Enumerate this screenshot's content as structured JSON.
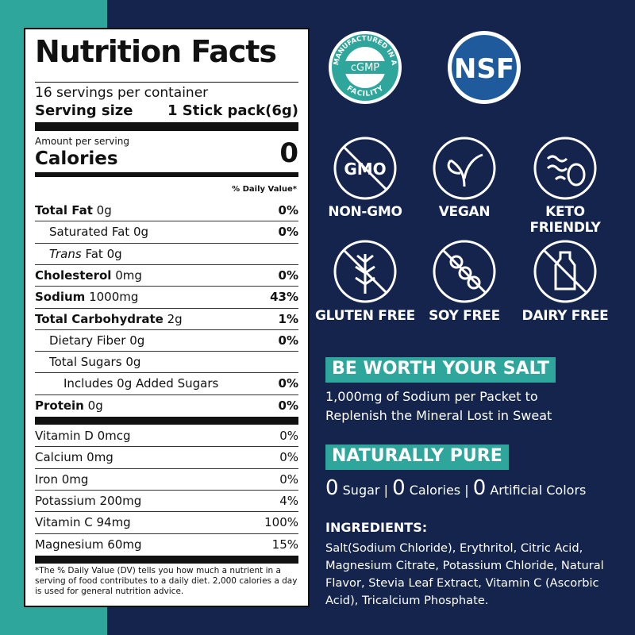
{
  "nutrition_facts": {
    "title": "Nutrition Facts",
    "servings": "16 servings per container",
    "serving_size_label": "Serving size",
    "serving_size_value": "1 Stick pack(6g)",
    "amount_per_serving": "Amount per serving",
    "calories_label": "Calories",
    "calories_value": "0",
    "daily_value_header": "% Daily Value*",
    "nutrients": [
      {
        "name": "Total Fat",
        "amount": "0g",
        "dv": "0%",
        "bold": true,
        "indent": 0
      },
      {
        "name": "Saturated Fat",
        "amount": "0g",
        "dv": "0%",
        "bold": false,
        "indent": 1
      },
      {
        "name_italic": "Trans",
        "name": "Fat",
        "amount": "0g",
        "bold": false,
        "indent": 1
      },
      {
        "name": "Cholesterol",
        "amount": "0mg",
        "dv": "0%",
        "bold": true,
        "indent": 0
      },
      {
        "name": "Sodium",
        "amount": "1000mg",
        "dv": "43%",
        "bold": true,
        "indent": 0
      },
      {
        "name": "Total Carbohydrate",
        "amount": "2g",
        "dv": "1%",
        "bold": true,
        "indent": 0
      },
      {
        "name": "Dietary Fiber",
        "amount": "0g",
        "dv": "0%",
        "bold": false,
        "indent": 1
      },
      {
        "name": "Total Sugars",
        "amount": "0g",
        "bold": false,
        "indent": 1
      },
      {
        "name": "Includes 0g Added Sugars",
        "dv": "0%",
        "bold": false,
        "indent": 2
      },
      {
        "name": "Protein",
        "amount": "0g",
        "dv": "0%",
        "bold": true,
        "indent": 0
      }
    ],
    "vitamins": [
      {
        "name": "Vitamin D",
        "amount": "0mcg",
        "dv": "0%"
      },
      {
        "name": "Calcium",
        "amount": "0mg",
        "dv": "0%"
      },
      {
        "name": "Iron",
        "amount": "0mg",
        "dv": "0%"
      },
      {
        "name": "Potassium",
        "amount": "200mg",
        "dv": "4%"
      },
      {
        "name": "Vitamin C",
        "amount": "94mg",
        "dv": "100%"
      },
      {
        "name": "Magnesium",
        "amount": "60mg",
        "dv": "15%"
      }
    ],
    "footnote": "*The % Daily Value (DV) tells you how much a nutrient in a serving of food contributes to a daily diet. 2,000 calories a day is used for general nutrition advice."
  },
  "badges": {
    "cgmp": {
      "top": "MANUFACTURED IN A",
      "center": "cGMP",
      "bottom": "FACILITY"
    },
    "nsf": "NSF"
  },
  "features": [
    {
      "icon_text": "GMO",
      "label": "NON-GMO"
    },
    {
      "label": "VEGAN"
    },
    {
      "label": "KETO FRIENDLY"
    },
    {
      "label": "GLUTEN FREE"
    },
    {
      "label": "SOY FREE"
    },
    {
      "label": "DAIRY FREE"
    }
  ],
  "salt": {
    "heading": "BE WORTH YOUR SALT",
    "text": "1,000mg of Sodium per Packet to Replenish the Mineral Lost in Sweat"
  },
  "pure": {
    "heading": "NATURALLY PURE",
    "claims": [
      {
        "number": "0",
        "text": "Sugar"
      },
      {
        "number": "0",
        "text": "Calories"
      },
      {
        "number": "0",
        "text": "Artificial Colors"
      }
    ],
    "separator": "|"
  },
  "ingredients": {
    "heading": "INGREDIENTS:",
    "text": "Salt(Sodium Chloride), Erythritol, Citric Acid, Magnesium Citrate, Potassium Chloride, Natural Flavor, Stevia Leaf Extract, Vitamin C (Ascorbic Acid), Tricalcium Phosphate."
  }
}
